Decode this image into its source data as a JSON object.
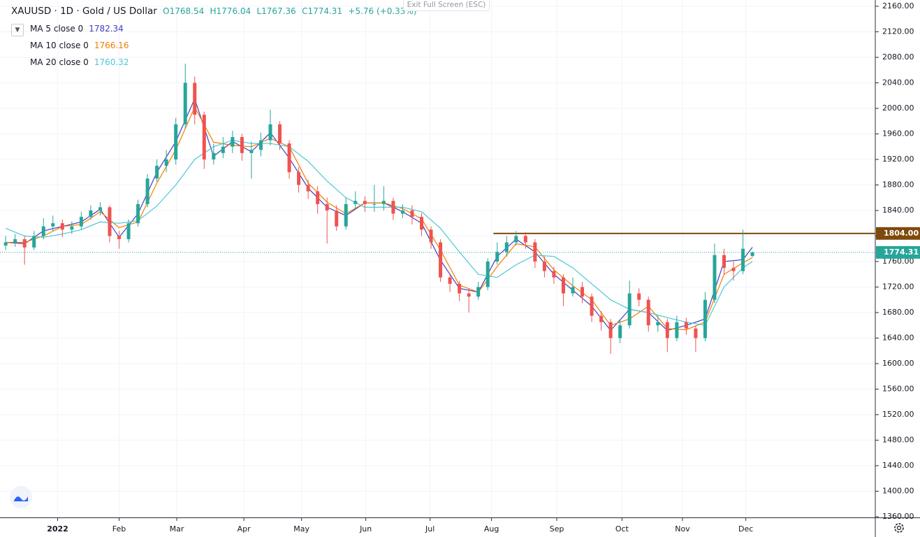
{
  "chart_data": {
    "type": "candlestick",
    "title": "XAUUSD · 1D · Gold / US Dollar",
    "ohlc_labels": [
      "O1768.54",
      "H1776.04",
      "L1767.36",
      "C1774.31",
      "+5.76 (+0.33%)"
    ],
    "button": "Exit Full Screen (ESC)",
    "up_color": "#26a69a",
    "down_color": "#ef5350",
    "candles": {
      "open": [
        1785,
        1790,
        1795,
        1782,
        1800,
        1815,
        1820,
        1810,
        1815,
        1830,
        1840,
        1845,
        1800,
        1795,
        1820,
        1850,
        1890,
        1910,
        1920,
        1975,
        2040,
        1990,
        1920,
        1930,
        1940,
        1955,
        1930,
        1935,
        1950,
        1975,
        1945,
        1900,
        1880,
        1870,
        1850,
        1840,
        1815,
        1850,
        1855,
        1850,
        1850,
        1855,
        1835,
        1840,
        1830,
        1810,
        1790,
        1735,
        1725,
        1710,
        1705,
        1720,
        1760,
        1775,
        1790,
        1800,
        1790,
        1760,
        1745,
        1735,
        1710,
        1720,
        1705,
        1675,
        1665,
        1640,
        1660,
        1710,
        1700,
        1660,
        1665,
        1640,
        1665,
        1655,
        1640,
        1700,
        1770,
        1750,
        1745,
        1768.54
      ],
      "high": [
        1800,
        1803,
        1800,
        1808,
        1828,
        1832,
        1826,
        1823,
        1838,
        1848,
        1853,
        1848,
        1808,
        1826,
        1857,
        1897,
        1920,
        1935,
        1985,
        2070,
        2050,
        1995,
        1945,
        1955,
        1965,
        1960,
        1948,
        1962,
        1998,
        1980,
        1950,
        1908,
        1888,
        1878,
        1860,
        1848,
        1860,
        1870,
        1862,
        1880,
        1878,
        1860,
        1850,
        1848,
        1836,
        1815,
        1795,
        1742,
        1730,
        1718,
        1728,
        1765,
        1790,
        1800,
        1808,
        1806,
        1795,
        1768,
        1752,
        1740,
        1735,
        1728,
        1710,
        1682,
        1670,
        1668,
        1730,
        1718,
        1705,
        1675,
        1670,
        1675,
        1672,
        1660,
        1712,
        1788,
        1780,
        1760,
        1810,
        1776.04
      ],
      "low": [
        1778,
        1783,
        1755,
        1778,
        1795,
        1808,
        1798,
        1803,
        1810,
        1825,
        1832,
        1790,
        1780,
        1790,
        1815,
        1845,
        1885,
        1900,
        1912,
        1968,
        1975,
        1905,
        1912,
        1922,
        1930,
        1918,
        1890,
        1925,
        1942,
        1935,
        1890,
        1868,
        1858,
        1835,
        1788,
        1808,
        1810,
        1842,
        1838,
        1838,
        1840,
        1825,
        1828,
        1818,
        1800,
        1780,
        1728,
        1712,
        1698,
        1680,
        1700,
        1715,
        1755,
        1768,
        1785,
        1780,
        1750,
        1735,
        1725,
        1690,
        1705,
        1695,
        1665,
        1652,
        1615,
        1632,
        1655,
        1690,
        1650,
        1650,
        1618,
        1635,
        1645,
        1618,
        1635,
        1695,
        1740,
        1730,
        1740,
        1767.36
      ],
      "close": [
        1790,
        1795,
        1782,
        1800,
        1815,
        1820,
        1810,
        1815,
        1830,
        1840,
        1845,
        1800,
        1795,
        1820,
        1850,
        1890,
        1910,
        1920,
        1975,
        2040,
        1990,
        1920,
        1930,
        1940,
        1955,
        1930,
        1935,
        1950,
        1975,
        1945,
        1900,
        1880,
        1870,
        1850,
        1840,
        1815,
        1850,
        1855,
        1850,
        1850,
        1855,
        1835,
        1840,
        1830,
        1810,
        1790,
        1735,
        1725,
        1710,
        1705,
        1720,
        1760,
        1775,
        1790,
        1800,
        1790,
        1760,
        1745,
        1735,
        1710,
        1720,
        1705,
        1675,
        1665,
        1640,
        1660,
        1710,
        1700,
        1660,
        1665,
        1640,
        1665,
        1655,
        1640,
        1700,
        1770,
        1750,
        1745,
        1780,
        1774.31
      ]
    },
    "series": [
      {
        "name": "MA 5 close 0",
        "legend_value": "1782.34",
        "color": "#3f3fbf",
        "x": [
          0,
          2,
          4,
          6,
          8,
          10,
          12,
          14,
          16,
          18,
          20,
          22,
          24,
          26,
          28,
          30,
          32,
          34,
          36,
          38,
          40,
          42,
          44,
          46,
          48,
          50,
          52,
          54,
          56,
          58,
          60,
          62,
          64,
          66,
          68,
          70,
          72,
          74,
          76,
          78,
          79
        ],
        "values": [
          1790,
          1788,
          1808,
          1815,
          1822,
          1842,
          1798,
          1835,
          1900,
          1948,
          2015,
          1925,
          1948,
          1932,
          1962,
          1922,
          1875,
          1845,
          1832,
          1852,
          1852,
          1838,
          1820,
          1762,
          1718,
          1712,
          1768,
          1795,
          1775,
          1740,
          1715,
          1690,
          1652,
          1685,
          1680,
          1652,
          1660,
          1670,
          1760,
          1763,
          1782.34
        ]
      },
      {
        "name": "MA 10 close 0",
        "legend_value": "1766.16",
        "color": "#f57c00",
        "x": [
          0,
          2,
          4,
          6,
          8,
          10,
          12,
          14,
          16,
          18,
          20,
          22,
          24,
          26,
          28,
          30,
          32,
          34,
          36,
          38,
          40,
          42,
          44,
          46,
          48,
          50,
          52,
          54,
          56,
          58,
          60,
          62,
          64,
          66,
          68,
          70,
          72,
          74,
          76,
          78,
          79
        ],
        "values": [
          1790,
          1790,
          1800,
          1815,
          1818,
          1838,
          1813,
          1822,
          1883,
          1935,
          2002,
          1947,
          1942,
          1940,
          1953,
          1940,
          1883,
          1853,
          1835,
          1852,
          1852,
          1843,
          1827,
          1778,
          1723,
          1712,
          1752,
          1788,
          1783,
          1747,
          1722,
          1700,
          1660,
          1670,
          1690,
          1655,
          1653,
          1665,
          1740,
          1758,
          1766.16
        ]
      },
      {
        "name": "MA 20 close 0",
        "legend_value": "1760.32",
        "color": "#4dc7d6",
        "x": [
          0,
          2,
          4,
          6,
          8,
          10,
          12,
          14,
          16,
          18,
          20,
          22,
          24,
          26,
          28,
          30,
          32,
          34,
          36,
          38,
          40,
          42,
          44,
          46,
          48,
          50,
          52,
          54,
          56,
          58,
          60,
          62,
          64,
          66,
          68,
          70,
          72,
          74,
          76,
          78,
          79
        ],
        "values": [
          1812,
          1800,
          1798,
          1803,
          1810,
          1822,
          1820,
          1824,
          1847,
          1880,
          1920,
          1940,
          1950,
          1945,
          1945,
          1940,
          1917,
          1886,
          1860,
          1845,
          1845,
          1845,
          1838,
          1812,
          1775,
          1740,
          1735,
          1755,
          1770,
          1768,
          1750,
          1725,
          1700,
          1685,
          1680,
          1672,
          1665,
          1660,
          1720,
          1750,
          1760.32
        ]
      }
    ],
    "hline": {
      "value": 1804,
      "label": "1804.00",
      "color": "#7f4a0c"
    },
    "last_price": 1774.31,
    "xlim": [
      -0.6,
      92
    ],
    "xticks": [
      {
        "value": 5.5,
        "label": "2022"
      },
      {
        "value": 12.0,
        "label": "Feb"
      },
      {
        "value": 18.1,
        "label": "Mar"
      },
      {
        "value": 25.2,
        "label": "Apr"
      },
      {
        "value": 31.3,
        "label": "May"
      },
      {
        "value": 38.1,
        "label": "Jun"
      },
      {
        "value": 44.9,
        "label": "Jul"
      },
      {
        "value": 51.4,
        "label": "Aug"
      },
      {
        "value": 58.3,
        "label": "Sep"
      },
      {
        "value": 65.2,
        "label": "Oct"
      },
      {
        "value": 71.6,
        "label": "Nov"
      },
      {
        "value": 78.3,
        "label": "Dec"
      }
    ],
    "ylim": [
      1360,
      2160
    ],
    "yticks": [
      {
        "value": 1360,
        "label": "1360.00"
      },
      {
        "value": 1400,
        "label": "1400.00"
      },
      {
        "value": 1440,
        "label": "1440.00"
      },
      {
        "value": 1480,
        "label": "1480.00"
      },
      {
        "value": 1520,
        "label": "1520.00"
      },
      {
        "value": 1560,
        "label": "1560.00"
      },
      {
        "value": 1600,
        "label": "1600.00"
      },
      {
        "value": 1640,
        "label": "1640.00"
      },
      {
        "value": 1680,
        "label": "1680.00"
      },
      {
        "value": 1720,
        "label": "1720.00"
      },
      {
        "value": 1760,
        "label": "1760.00"
      },
      {
        "value": 1800,
        "label": "1800.00"
      },
      {
        "value": 1840,
        "label": "1840.00"
      },
      {
        "value": 1880,
        "label": "1880.00"
      },
      {
        "value": 1920,
        "label": "1920.00"
      },
      {
        "value": 1960,
        "label": "1960.00"
      },
      {
        "value": 2000,
        "label": "2000.00"
      },
      {
        "value": 2040,
        "label": "2040.00"
      },
      {
        "value": 2080,
        "label": "2080.00"
      },
      {
        "value": 2120,
        "label": "2120.00"
      },
      {
        "value": 2160,
        "label": "2160.00"
      }
    ],
    "grid": true
  }
}
